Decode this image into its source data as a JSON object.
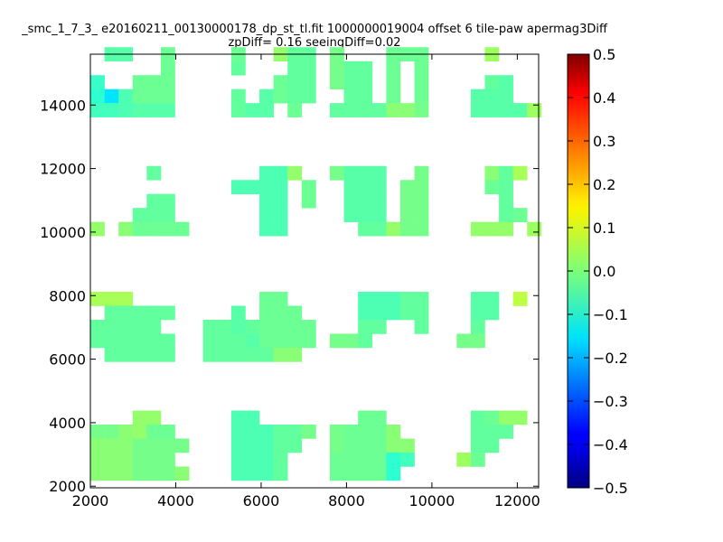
{
  "chart_data": {
    "type": "heatmap",
    "title": "_smc_1_7_3_ e20160211_00130000178_dp_st_tl.fit 1000000019004 offset 6 tile-paw apermag3Diff",
    "subtitle": "zpDiff= 0.16 seeingDiff=0.02",
    "xlabel": "",
    "ylabel": "",
    "xlim": [
      2000,
      12500
    ],
    "ylim": [
      1950,
      15600
    ],
    "xticks": [
      "2000",
      "4000",
      "6000",
      "8000",
      "10000",
      "12000"
    ],
    "yticks": [
      "2000",
      "4000",
      "6000",
      "8000",
      "10000",
      "12000",
      "14000"
    ],
    "colorbar": {
      "range": [
        -0.5,
        0.5
      ],
      "ticks": [
        "0.5",
        "0.4",
        "0.3",
        "0.2",
        "0.1",
        "0.0",
        "−0.1",
        "−0.2",
        "−0.3",
        "−0.4",
        "−0.5"
      ],
      "colormap": "jet"
    },
    "grid": false,
    "cell_width": 330,
    "cell_height": 440,
    "cells": [
      [
        2330,
        15380,
        -0.04
      ],
      [
        2660,
        15380,
        -0.04
      ],
      [
        3650,
        15380,
        -0.02
      ],
      [
        5300,
        15380,
        -0.02
      ],
      [
        6290,
        15380,
        0.02
      ],
      [
        6620,
        15380,
        -0.03
      ],
      [
        6950,
        15380,
        -0.03
      ],
      [
        7610,
        15380,
        -0.01
      ],
      [
        8930,
        15380,
        -0.02
      ],
      [
        9260,
        15380,
        -0.02
      ],
      [
        9590,
        15380,
        -0.02
      ],
      [
        11240,
        15380,
        0.03
      ],
      [
        3650,
        14940,
        -0.02
      ],
      [
        5300,
        14940,
        -0.03
      ],
      [
        6620,
        14940,
        -0.03
      ],
      [
        6950,
        14940,
        -0.03
      ],
      [
        7610,
        14940,
        -0.01
      ],
      [
        7940,
        14940,
        -0.03
      ],
      [
        8270,
        14940,
        -0.03
      ],
      [
        8930,
        14940,
        -0.02
      ],
      [
        9590,
        14940,
        -0.02
      ],
      [
        2000,
        14500,
        -0.07
      ],
      [
        2990,
        14500,
        -0.02
      ],
      [
        3320,
        14500,
        -0.02
      ],
      [
        3650,
        14500,
        -0.02
      ],
      [
        6290,
        14500,
        -0.02
      ],
      [
        6620,
        14500,
        -0.03
      ],
      [
        6950,
        14500,
        -0.03
      ],
      [
        7610,
        14500,
        -0.01
      ],
      [
        7940,
        14500,
        -0.03
      ],
      [
        8270,
        14500,
        -0.03
      ],
      [
        8930,
        14500,
        -0.02
      ],
      [
        9590,
        14500,
        -0.02
      ],
      [
        11240,
        14500,
        -0.03
      ],
      [
        11570,
        14500,
        -0.04
      ],
      [
        2000,
        14060,
        -0.08
      ],
      [
        2330,
        14060,
        -0.15
      ],
      [
        2660,
        14060,
        -0.05
      ],
      [
        2990,
        14060,
        -0.02
      ],
      [
        3320,
        14060,
        -0.02
      ],
      [
        3650,
        14060,
        -0.02
      ],
      [
        5300,
        14060,
        -0.03
      ],
      [
        5960,
        14060,
        -0.04
      ],
      [
        6290,
        14060,
        -0.02
      ],
      [
        6620,
        14060,
        -0.03
      ],
      [
        6950,
        14060,
        -0.03
      ],
      [
        7940,
        14060,
        -0.03
      ],
      [
        8270,
        14060,
        -0.03
      ],
      [
        8930,
        14060,
        -0.02
      ],
      [
        9590,
        14060,
        -0.02
      ],
      [
        10910,
        14060,
        -0.04
      ],
      [
        11240,
        14060,
        -0.04
      ],
      [
        11570,
        14060,
        -0.04
      ],
      [
        2000,
        13620,
        -0.06
      ],
      [
        2330,
        13620,
        -0.06
      ],
      [
        2660,
        13620,
        -0.05
      ],
      [
        2990,
        13620,
        -0.04
      ],
      [
        3320,
        13620,
        -0.04
      ],
      [
        3650,
        13620,
        -0.04
      ],
      [
        5300,
        13620,
        -0.03
      ],
      [
        5630,
        13620,
        -0.04
      ],
      [
        5960,
        13620,
        -0.04
      ],
      [
        6620,
        13620,
        -0.02
      ],
      [
        7610,
        13620,
        -0.03
      ],
      [
        7940,
        13620,
        -0.03
      ],
      [
        8270,
        13620,
        -0.03
      ],
      [
        8600,
        13620,
        -0.03
      ],
      [
        8930,
        13620,
        0.01
      ],
      [
        9260,
        13620,
        0.01
      ],
      [
        9590,
        13620,
        -0.01
      ],
      [
        10910,
        13620,
        -0.04
      ],
      [
        11240,
        13620,
        -0.04
      ],
      [
        11570,
        13620,
        -0.04
      ],
      [
        11900,
        13620,
        -0.04
      ],
      [
        12230,
        13620,
        0.03
      ],
      [
        3320,
        11640,
        -0.03
      ],
      [
        5960,
        11640,
        -0.05
      ],
      [
        6290,
        11640,
        -0.05
      ],
      [
        6620,
        11640,
        0.02
      ],
      [
        7610,
        11640,
        -0.01
      ],
      [
        7940,
        11640,
        -0.04
      ],
      [
        8270,
        11640,
        -0.04
      ],
      [
        8600,
        11640,
        -0.04
      ],
      [
        9590,
        11640,
        -0.01
      ],
      [
        11240,
        11640,
        0.01
      ],
      [
        11570,
        11640,
        -0.03
      ],
      [
        11900,
        11640,
        0.04
      ],
      [
        5300,
        11200,
        -0.05
      ],
      [
        5630,
        11200,
        -0.05
      ],
      [
        5960,
        11200,
        -0.05
      ],
      [
        6290,
        11200,
        -0.05
      ],
      [
        6950,
        11200,
        -0.02
      ],
      [
        7940,
        11200,
        -0.04
      ],
      [
        8270,
        11200,
        -0.04
      ],
      [
        8600,
        11200,
        -0.04
      ],
      [
        9260,
        11200,
        -0.01
      ],
      [
        9590,
        11200,
        -0.01
      ],
      [
        11240,
        11200,
        -0.02
      ],
      [
        11570,
        11200,
        -0.03
      ],
      [
        3320,
        10760,
        -0.03
      ],
      [
        3650,
        10760,
        -0.03
      ],
      [
        5960,
        10760,
        -0.05
      ],
      [
        6290,
        10760,
        -0.05
      ],
      [
        6950,
        10760,
        -0.02
      ],
      [
        7940,
        10760,
        -0.04
      ],
      [
        8270,
        10760,
        -0.04
      ],
      [
        8600,
        10760,
        -0.04
      ],
      [
        9260,
        10760,
        -0.01
      ],
      [
        9590,
        10760,
        -0.01
      ],
      [
        11570,
        10760,
        -0.03
      ],
      [
        2990,
        10320,
        -0.03
      ],
      [
        3320,
        10320,
        -0.03
      ],
      [
        3650,
        10320,
        -0.03
      ],
      [
        5960,
        10320,
        -0.05
      ],
      [
        6290,
        10320,
        -0.05
      ],
      [
        7940,
        10320,
        -0.04
      ],
      [
        8270,
        10320,
        -0.04
      ],
      [
        8600,
        10320,
        -0.04
      ],
      [
        9260,
        10320,
        -0.01
      ],
      [
        9590,
        10320,
        -0.01
      ],
      [
        11570,
        10320,
        -0.03
      ],
      [
        11900,
        10320,
        -0.02
      ],
      [
        2000,
        9880,
        0.02
      ],
      [
        2660,
        9880,
        0.01
      ],
      [
        2990,
        9880,
        -0.02
      ],
      [
        3320,
        9880,
        -0.02
      ],
      [
        3650,
        9880,
        -0.02
      ],
      [
        3980,
        9880,
        -0.02
      ],
      [
        5960,
        9880,
        -0.05
      ],
      [
        6290,
        9880,
        -0.05
      ],
      [
        8270,
        9880,
        -0.03
      ],
      [
        8600,
        9880,
        -0.03
      ],
      [
        8930,
        9880,
        0.02
      ],
      [
        9260,
        9880,
        -0.01
      ],
      [
        9590,
        9880,
        -0.01
      ],
      [
        10910,
        9880,
        0.02
      ],
      [
        11240,
        9880,
        0.02
      ],
      [
        11570,
        9880,
        0.02
      ],
      [
        12230,
        9880,
        0.03
      ],
      [
        2000,
        7680,
        0.04
      ],
      [
        2330,
        7680,
        0.04
      ],
      [
        2660,
        7680,
        0.04
      ],
      [
        5960,
        7680,
        -0.02
      ],
      [
        6290,
        7680,
        -0.02
      ],
      [
        8270,
        7680,
        -0.05
      ],
      [
        8600,
        7680,
        -0.05
      ],
      [
        8930,
        7680,
        -0.05
      ],
      [
        9260,
        7680,
        -0.03
      ],
      [
        9590,
        7680,
        -0.03
      ],
      [
        10910,
        7680,
        -0.04
      ],
      [
        11240,
        7680,
        -0.04
      ],
      [
        11900,
        7680,
        0.06
      ],
      [
        2330,
        7240,
        -0.03
      ],
      [
        2660,
        7240,
        -0.03
      ],
      [
        2990,
        7240,
        -0.03
      ],
      [
        3320,
        7240,
        -0.03
      ],
      [
        3650,
        7240,
        -0.03
      ],
      [
        5300,
        7240,
        -0.04
      ],
      [
        5960,
        7240,
        -0.02
      ],
      [
        6290,
        7240,
        -0.02
      ],
      [
        6620,
        7240,
        -0.02
      ],
      [
        8270,
        7240,
        -0.05
      ],
      [
        8600,
        7240,
        -0.05
      ],
      [
        8930,
        7240,
        -0.05
      ],
      [
        9260,
        7240,
        -0.03
      ],
      [
        9590,
        7240,
        -0.03
      ],
      [
        10910,
        7240,
        -0.04
      ],
      [
        11240,
        7240,
        -0.04
      ],
      [
        2000,
        6800,
        -0.03
      ],
      [
        2330,
        6800,
        -0.03
      ],
      [
        2660,
        6800,
        -0.03
      ],
      [
        2990,
        6800,
        -0.03
      ],
      [
        3320,
        6800,
        -0.03
      ],
      [
        4640,
        6800,
        -0.03
      ],
      [
        4970,
        6800,
        -0.03
      ],
      [
        5300,
        6800,
        -0.04
      ],
      [
        5630,
        6800,
        -0.03
      ],
      [
        5960,
        6800,
        -0.02
      ],
      [
        6290,
        6800,
        -0.02
      ],
      [
        6620,
        6800,
        -0.02
      ],
      [
        6950,
        6800,
        -0.02
      ],
      [
        8270,
        6800,
        -0.03
      ],
      [
        8600,
        6800,
        -0.03
      ],
      [
        9590,
        6800,
        -0.03
      ],
      [
        10910,
        6800,
        -0.03
      ],
      [
        2000,
        6360,
        -0.03
      ],
      [
        2330,
        6360,
        -0.03
      ],
      [
        2660,
        6360,
        -0.03
      ],
      [
        2990,
        6360,
        -0.03
      ],
      [
        3320,
        6360,
        -0.03
      ],
      [
        3650,
        6360,
        -0.03
      ],
      [
        4640,
        6360,
        -0.03
      ],
      [
        4970,
        6360,
        -0.03
      ],
      [
        5300,
        6360,
        -0.03
      ],
      [
        5630,
        6360,
        -0.04
      ],
      [
        5960,
        6360,
        -0.02
      ],
      [
        6290,
        6360,
        -0.02
      ],
      [
        6620,
        6360,
        -0.02
      ],
      [
        6950,
        6360,
        -0.02
      ],
      [
        7610,
        6360,
        -0.01
      ],
      [
        7940,
        6360,
        -0.01
      ],
      [
        8270,
        6360,
        -0.03
      ],
      [
        10580,
        6360,
        -0.01
      ],
      [
        10910,
        6360,
        -0.01
      ],
      [
        2330,
        5920,
        -0.03
      ],
      [
        2660,
        5920,
        -0.03
      ],
      [
        2990,
        5920,
        -0.03
      ],
      [
        3320,
        5920,
        -0.03
      ],
      [
        3650,
        5920,
        -0.03
      ],
      [
        4640,
        5920,
        -0.03
      ],
      [
        4970,
        5920,
        -0.03
      ],
      [
        5300,
        5920,
        -0.03
      ],
      [
        5630,
        5920,
        -0.03
      ],
      [
        5960,
        5920,
        -0.03
      ],
      [
        6290,
        5920,
        0.01
      ],
      [
        6620,
        5920,
        0.01
      ],
      [
        2990,
        3940,
        0.02
      ],
      [
        3320,
        3940,
        0.02
      ],
      [
        5300,
        3940,
        -0.05
      ],
      [
        5630,
        3940,
        -0.05
      ],
      [
        8270,
        3940,
        -0.02
      ],
      [
        8600,
        3940,
        -0.02
      ],
      [
        10910,
        3940,
        -0.03
      ],
      [
        11240,
        3940,
        -0.02
      ],
      [
        11570,
        3940,
        0.02
      ],
      [
        11900,
        3940,
        0.02
      ],
      [
        2000,
        3500,
        -0.01
      ],
      [
        2330,
        3500,
        -0.01
      ],
      [
        2660,
        3500,
        0.01
      ],
      [
        2990,
        3500,
        0.02
      ],
      [
        3320,
        3500,
        -0.02
      ],
      [
        3650,
        3500,
        -0.02
      ],
      [
        5300,
        3500,
        -0.05
      ],
      [
        5630,
        3500,
        -0.05
      ],
      [
        5960,
        3500,
        -0.05
      ],
      [
        6290,
        3500,
        -0.03
      ],
      [
        6620,
        3500,
        -0.03
      ],
      [
        6950,
        3500,
        -0.01
      ],
      [
        7610,
        3500,
        -0.01
      ],
      [
        7940,
        3500,
        -0.02
      ],
      [
        8270,
        3500,
        -0.02
      ],
      [
        8600,
        3500,
        -0.02
      ],
      [
        8930,
        3500,
        0.01
      ],
      [
        10910,
        3500,
        -0.03
      ],
      [
        11240,
        3500,
        -0.03
      ],
      [
        11570,
        3500,
        -0.03
      ],
      [
        2000,
        3060,
        0.01
      ],
      [
        2330,
        3060,
        0.01
      ],
      [
        2660,
        3060,
        0.01
      ],
      [
        2990,
        3060,
        -0.01
      ],
      [
        3320,
        3060,
        -0.01
      ],
      [
        3650,
        3060,
        -0.01
      ],
      [
        3980,
        3060,
        -0.01
      ],
      [
        5300,
        3060,
        -0.05
      ],
      [
        5630,
        3060,
        -0.05
      ],
      [
        5960,
        3060,
        -0.05
      ],
      [
        6290,
        3060,
        -0.03
      ],
      [
        6620,
        3060,
        -0.03
      ],
      [
        7610,
        3060,
        -0.01
      ],
      [
        7940,
        3060,
        -0.02
      ],
      [
        8270,
        3060,
        -0.02
      ],
      [
        8600,
        3060,
        -0.02
      ],
      [
        8930,
        3060,
        0.01
      ],
      [
        9260,
        3060,
        0.01
      ],
      [
        10910,
        3060,
        -0.03
      ],
      [
        11240,
        3060,
        -0.03
      ],
      [
        2000,
        2620,
        0.01
      ],
      [
        2330,
        2620,
        0.01
      ],
      [
        2660,
        2620,
        0.01
      ],
      [
        2990,
        2620,
        -0.01
      ],
      [
        3320,
        2620,
        -0.01
      ],
      [
        3650,
        2620,
        -0.01
      ],
      [
        5300,
        2620,
        -0.05
      ],
      [
        5630,
        2620,
        -0.05
      ],
      [
        5960,
        2620,
        -0.05
      ],
      [
        6290,
        2620,
        -0.03
      ],
      [
        7610,
        2620,
        -0.02
      ],
      [
        7940,
        2620,
        -0.02
      ],
      [
        8270,
        2620,
        -0.02
      ],
      [
        8600,
        2620,
        -0.02
      ],
      [
        8930,
        2620,
        -0.08
      ],
      [
        9260,
        2620,
        -0.06
      ],
      [
        10580,
        2620,
        0.03
      ],
      [
        10910,
        2620,
        -0.02
      ],
      [
        2000,
        2180,
        0.01
      ],
      [
        2330,
        2180,
        0.01
      ],
      [
        2660,
        2180,
        0.01
      ],
      [
        2990,
        2180,
        -0.01
      ],
      [
        3320,
        2180,
        -0.01
      ],
      [
        3650,
        2180,
        -0.01
      ],
      [
        3980,
        2180,
        0.01
      ],
      [
        5300,
        2180,
        -0.05
      ],
      [
        5630,
        2180,
        -0.05
      ],
      [
        5960,
        2180,
        -0.05
      ],
      [
        6290,
        2180,
        -0.03
      ],
      [
        7610,
        2180,
        -0.02
      ],
      [
        7940,
        2180,
        -0.02
      ],
      [
        8270,
        2180,
        -0.02
      ],
      [
        8600,
        2180,
        -0.02
      ],
      [
        8930,
        2180,
        -0.08
      ]
    ]
  }
}
